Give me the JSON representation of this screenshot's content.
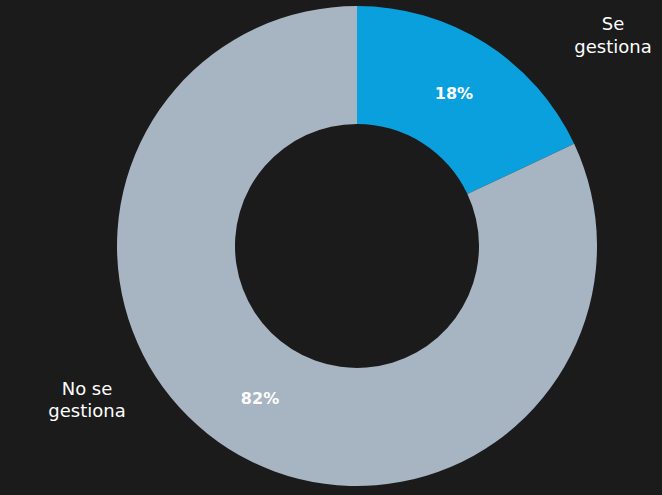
{
  "chart_data": {
    "type": "pie",
    "categories": [
      "Se gestiona",
      "No se gestiona"
    ],
    "values": [
      18,
      82
    ],
    "value_labels": [
      "18%",
      "82%"
    ],
    "colors": [
      "#0aa0de",
      "#a7b4c2"
    ],
    "data_labels": true
  }
}
